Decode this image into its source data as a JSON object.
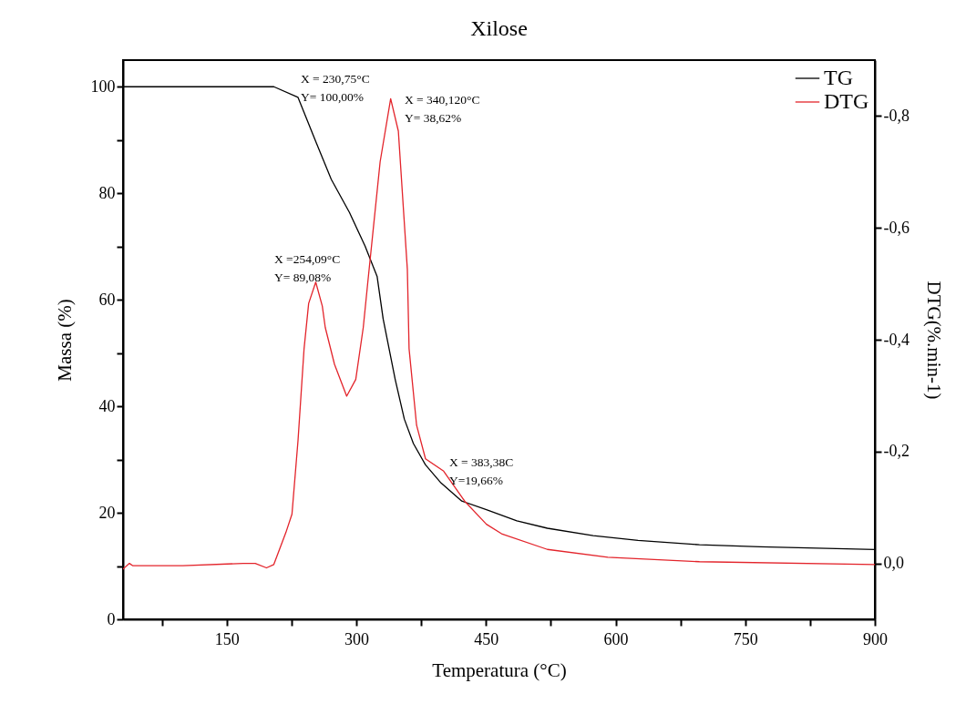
{
  "chart_data": {
    "type": "line",
    "title": "Xilose",
    "xlabel": "Temperatura (°C)",
    "ylabel": "Massa (%)",
    "y2label": "DTG(%.min-1)",
    "xlim": [
      30,
      900
    ],
    "xticks": [
      {
        "value": 75,
        "label": null
      },
      150,
      {
        "value": 225,
        "label": null
      },
      300,
      {
        "value": 375,
        "label": null
      },
      450,
      {
        "value": 525,
        "label": null
      },
      600,
      {
        "value": 675,
        "label": null
      },
      750,
      {
        "value": 825,
        "label": null
      },
      900
    ],
    "ylim": [
      0,
      105
    ],
    "yticks": [
      0,
      {
        "value": 10,
        "label": null
      },
      20,
      {
        "value": 30,
        "label": null
      },
      40,
      {
        "value": 50,
        "label": null
      },
      60,
      {
        "value": 70,
        "label": null
      },
      80,
      {
        "value": 90,
        "label": null
      },
      100
    ],
    "y2lim": [
      0.1,
      -0.9
    ],
    "y2ticks": [
      {
        "value": 0,
        "label": "0,0"
      },
      {
        "value": -0.2,
        "label": "-0,2"
      },
      {
        "value": -0.4,
        "label": "-0,4"
      },
      {
        "value": -0.6,
        "label": "-0,6"
      },
      {
        "value": -0.8,
        "label": "-0,8"
      }
    ],
    "grid": false,
    "legend": "top right",
    "marker": "none",
    "line_style": "solid",
    "series": [
      {
        "name": "TG",
        "color": "#000000",
        "x": [
          30,
          100,
          204.6,
          232.5,
          253.6,
          271,
          292,
          310,
          324,
          331,
          345,
          355.5,
          366,
          380,
          398,
          422,
          450.5,
          485.7,
          521,
          574,
          626,
          697,
          767,
          900
        ],
        "values": [
          100,
          100,
          100,
          98,
          89.5,
          82.6,
          76.4,
          70.1,
          64.4,
          56.4,
          45,
          37.6,
          33,
          29,
          25.6,
          22.2,
          20.6,
          18.5,
          17.1,
          15.7,
          14.8,
          14.0,
          13.6,
          13.1
        ]
      },
      {
        "name": "DTG",
        "color": "#e3242b",
        "axis": "y2",
        "x": [
          30,
          37.4,
          41,
          99,
          169,
          183,
          196,
          204.5,
          218.4,
          225.5,
          232.5,
          239.5,
          244.8,
          253,
          260.6,
          264,
          274.7,
          288.8,
          299.3,
          308,
          313,
          327.5,
          339.7,
          348.6,
          359,
          361,
          369.7,
          380,
          401,
          426,
          450.5,
          468,
          521,
          591,
          697,
          900
        ],
        "values": [
          0.01,
          0,
          0.004,
          0.004,
          0,
          0,
          0.008,
          0.002,
          -0.055,
          -0.088,
          -0.22,
          -0.384,
          -0.465,
          -0.503,
          -0.46,
          -0.422,
          -0.356,
          -0.299,
          -0.329,
          -0.422,
          -0.499,
          -0.718,
          -0.831,
          -0.773,
          -0.526,
          -0.384,
          -0.247,
          -0.187,
          -0.165,
          -0.11,
          -0.07,
          -0.053,
          -0.025,
          -0.011,
          -0.003,
          0.002
        ]
      }
    ],
    "annotations": [
      "X = 230,75°C\nY= 100,00%",
      "X = 340,120°C\nY= 38,62%",
      "X =254,09°C\nY= 89,08%",
      "X = 383,38C\nY=19,66%"
    ]
  }
}
